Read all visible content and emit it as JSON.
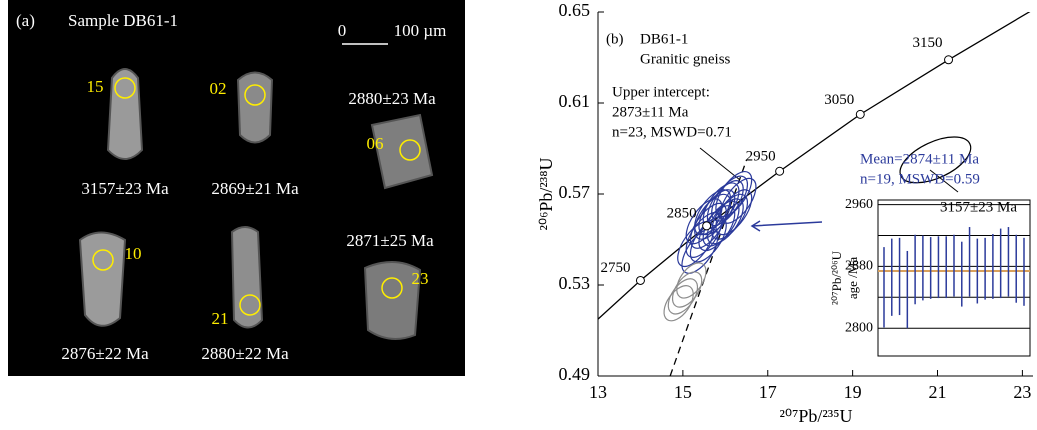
{
  "panel_a": {
    "label": "(a)",
    "sample": "Sample DB61-1",
    "scale": [
      "0",
      "100 µm"
    ],
    "grains": [
      {
        "spot": "15",
        "age": "3157±23 Ma"
      },
      {
        "spot": "02",
        "age": "2869±21 Ma"
      },
      {
        "spot": "06",
        "age": "2880±23 Ma"
      },
      {
        "spot": "10",
        "age": "2876±22 Ma"
      },
      {
        "spot": "21",
        "age": "2880±22 Ma"
      },
      {
        "spot": "23",
        "age": "2871±25 Ma"
      }
    ]
  },
  "chart_data": [
    {
      "type": "concordia",
      "label": "(b)",
      "sample": "DB61-1",
      "rock": "Granitic gneiss",
      "xlabel": "²⁰⁷Pb/²³⁵U",
      "ylabel": "²⁰⁶Pb/²³⁸U",
      "xlim": [
        13,
        23.25
      ],
      "ylim": [
        0.49,
        0.65
      ],
      "xticks": [
        13,
        15,
        17,
        19,
        21,
        23
      ],
      "yticks": [
        0.49,
        0.53,
        0.57,
        0.61,
        0.65
      ],
      "concordia": {
        "x": [
          13,
          14.0,
          15.56,
          17.28,
          19.18,
          21.26,
          23.25
        ],
        "y": [
          0.515,
          0.532,
          0.556,
          0.58,
          0.605,
          0.629,
          0.651
        ]
      },
      "age_markers": {
        "ages": [
          2750,
          2850,
          2950,
          3050,
          3150
        ],
        "x": [
          14.0,
          15.56,
          17.28,
          19.18,
          21.26
        ],
        "y": [
          0.532,
          0.556,
          0.58,
          0.605,
          0.629
        ]
      },
      "discordia": {
        "x": [
          14.7,
          16.5
        ],
        "y": [
          0.49,
          0.585
        ]
      },
      "series": [
        {
          "color": "#2b3a9b",
          "x": [
            15.3,
            15.5,
            15.6,
            15.7,
            15.8,
            15.9,
            16.0,
            16.1,
            16.2,
            16.3,
            15.4,
            15.6,
            15.8,
            16.0,
            16.2,
            15.7,
            15.9,
            16.1,
            15.5
          ],
          "y": [
            0.548,
            0.552,
            0.556,
            0.56,
            0.562,
            0.565,
            0.566,
            0.568,
            0.57,
            0.567,
            0.545,
            0.55,
            0.555,
            0.558,
            0.562,
            0.562,
            0.557,
            0.56,
            0.558
          ]
        },
        {
          "color": "#8c8c8c",
          "x": [
            14.9,
            15.0,
            15.1,
            15.2
          ],
          "y": [
            0.522,
            0.525,
            0.528,
            0.532
          ]
        },
        {
          "color": "#000000",
          "x": [
            20.95
          ],
          "y": [
            0.585
          ]
        }
      ],
      "annotations": {
        "intercept": [
          "Upper intercept:",
          "2873±11 Ma",
          "n=23, MSWD=0.71"
        ],
        "old_age": "3157±23 Ma",
        "mean": [
          "Mean=2874±11 Ma",
          "n=19, MSWD=0.59"
        ]
      }
    },
    {
      "type": "errorbar",
      "ylabel": [
        "²⁰⁷Pb/²⁰⁶U",
        "age /Ma"
      ],
      "ylim": [
        2764,
        2966
      ],
      "yticks": [
        2800,
        2880,
        2960
      ],
      "values": [
        2853,
        2866,
        2867,
        2850,
        2876,
        2878,
        2878,
        2879,
        2879,
        2881,
        2870,
        2886,
        2874,
        2877,
        2880,
        2884,
        2886,
        2877,
        2873
      ],
      "errors": [
        52,
        50,
        50,
        50,
        45,
        42,
        40,
        40,
        40,
        40,
        42,
        45,
        42,
        40,
        42,
        45,
        45,
        44,
        44
      ],
      "color": "#2b3a9b",
      "mean": 2874,
      "mean_color": "#d9a05b",
      "lines": [
        2840,
        2920
      ]
    }
  ]
}
